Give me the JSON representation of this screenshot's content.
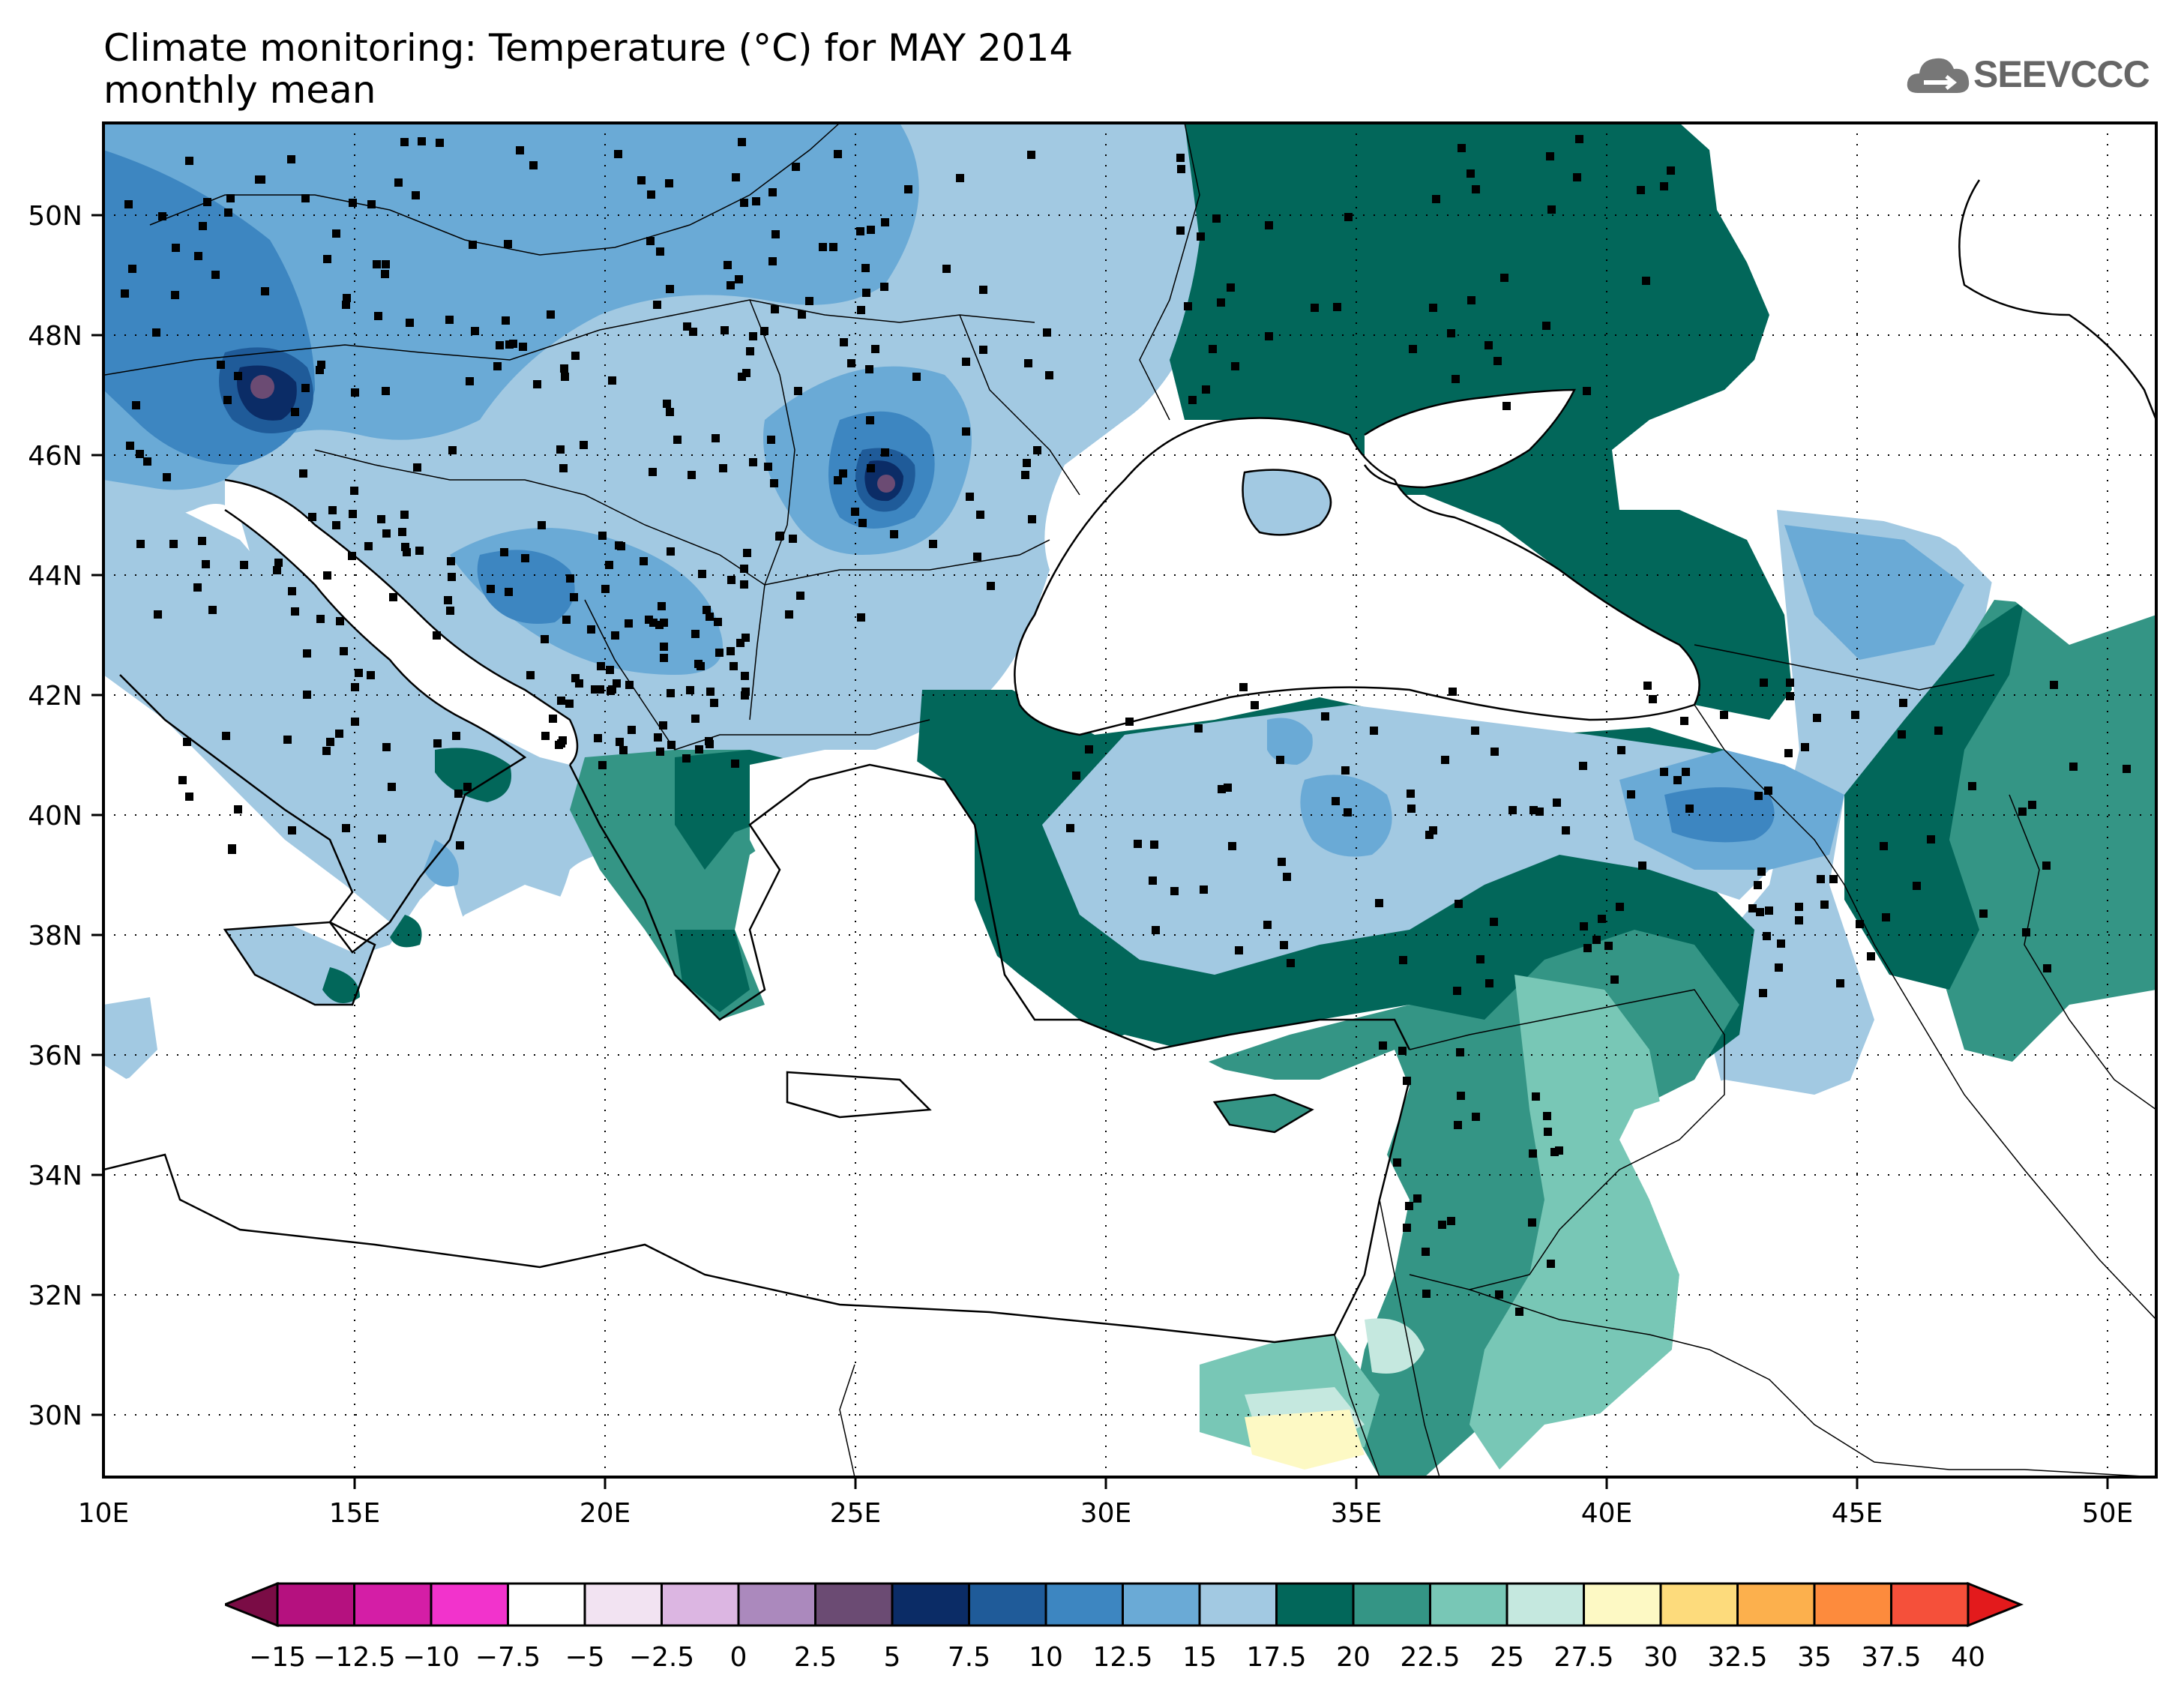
{
  "header": {
    "title_line1": "Climate monitoring: Temperature (°C) for MAY 2014",
    "title_line2": "monthly mean",
    "logo_text": "SEEVCCC",
    "logo_icon": "cloud-icon"
  },
  "map": {
    "lat_labels": [
      "50N",
      "48N",
      "46N",
      "44N",
      "42N",
      "40N",
      "38N",
      "36N",
      "34N",
      "32N",
      "30N"
    ],
    "lon_labels": [
      "10E",
      "15E",
      "20E",
      "25E",
      "30E",
      "35E",
      "40E",
      "45E",
      "50E"
    ]
  },
  "colorbar": {
    "labels": [
      "−15",
      "−12.5",
      "−10",
      "−7.5",
      "−5",
      "−2.5",
      "0",
      "2.5",
      "5",
      "7.5",
      "10",
      "12.5",
      "15",
      "17.5",
      "20",
      "22.5",
      "25",
      "27.5",
      "30",
      "32.5",
      "35",
      "37.5",
      "40"
    ],
    "colors": [
      "#8e0f5a",
      "#b5117f",
      "#d41ea6",
      "#f233cc",
      "#ffffff",
      "#f2e3f2",
      "#dcb6e2",
      "#ab89bd",
      "#6b4b73",
      "#0b2c66",
      "#1f5b99",
      "#3d86c1",
      "#6aaad6",
      "#a2c9e2",
      "#02675a",
      "#349585",
      "#78c7b6",
      "#c5e8df",
      "#fdf9c4",
      "#fddb7c",
      "#fcb04d",
      "#fd8b3d",
      "#f5503a",
      "#e31a1c"
    ],
    "left_arrow_color": "#7a0c45",
    "right_arrow_color": "#e31a1c"
  },
  "stations": {
    "marker": "square"
  }
}
